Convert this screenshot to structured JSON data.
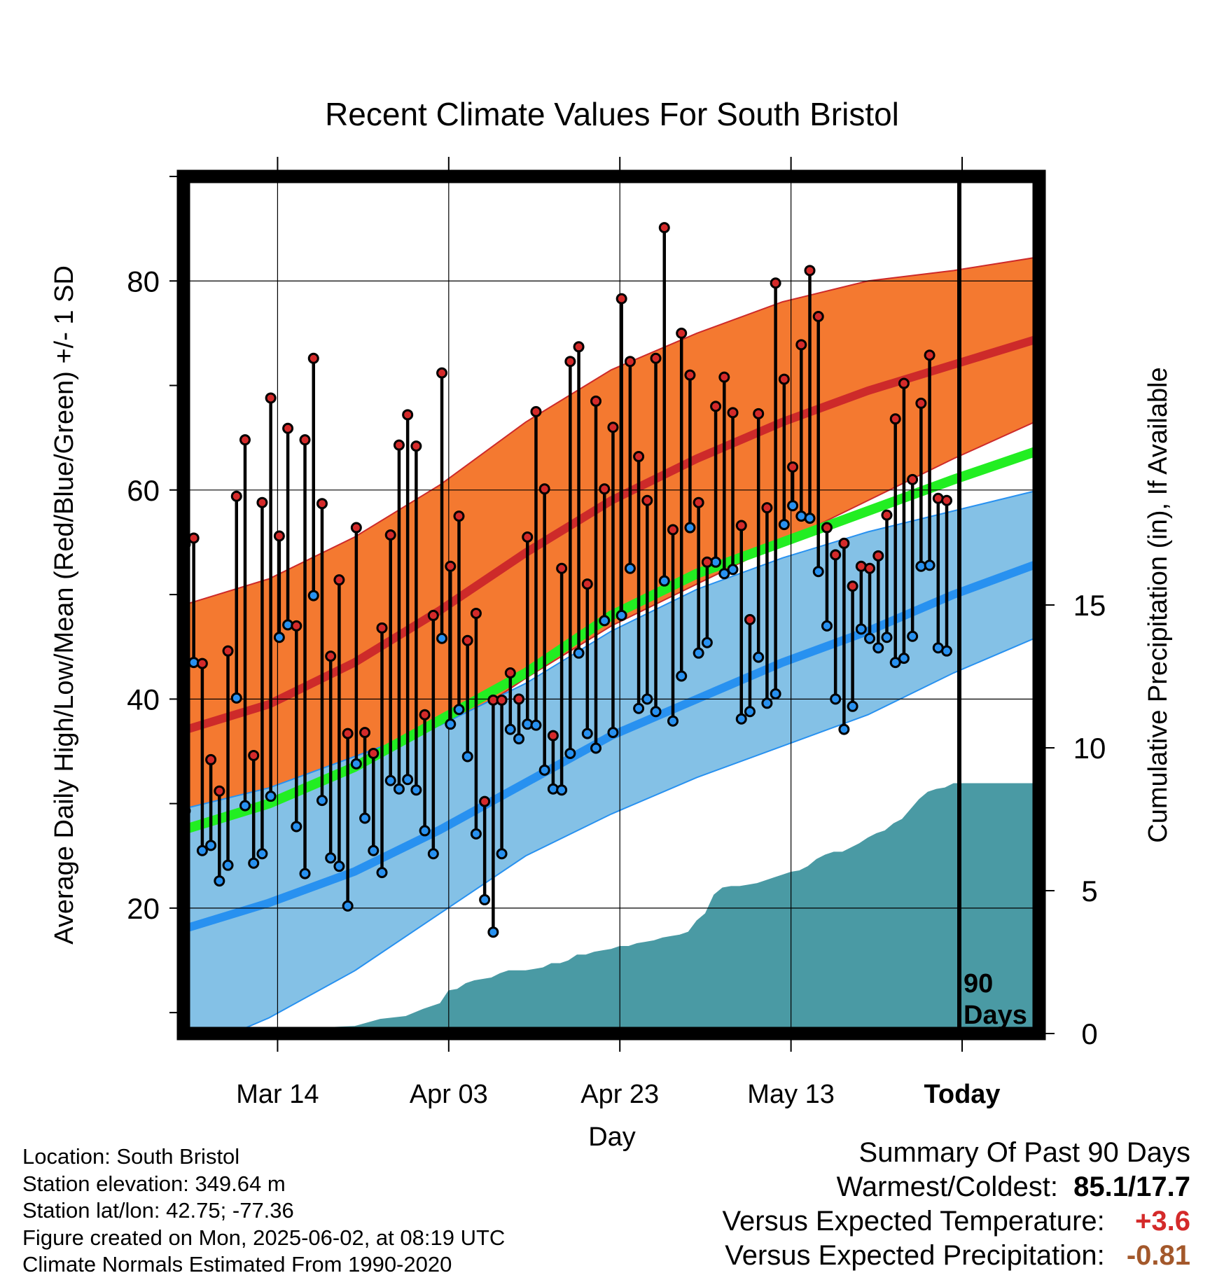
{
  "title": "Recent Climate Values For South Bristol",
  "ylabel_left": "Average Daily High/Low/Mean (Red/Blue/Green) +/- 1 SD",
  "ylabel_right": "Cumulative Precipitation (in), If Available",
  "xlabel": "Day",
  "today_box": {
    "line1": "90",
    "line2": "Days"
  },
  "footer": {
    "location": "Location: South Bristol",
    "elevation": "Station elevation: 349.64 m",
    "latlon": "Station lat/lon: 42.75; -77.36",
    "created": "Figure created on Mon, 2025-06-02, at 08:19 UTC",
    "normals": "Climate Normals Estimated From 1990-2020"
  },
  "summary": {
    "heading": "Summary Of Past 90 Days",
    "warm_cold_label": "Warmest/Coldest:",
    "warm_cold_value": "85.1/17.7",
    "temp_label": "Versus Expected Temperature:",
    "temp_value": "+3.6",
    "temp_color": "#d42a2a",
    "precip_label": "Versus Expected Precipitation:",
    "precip_value": "-0.81",
    "precip_color": "#a3582b"
  },
  "colors": {
    "high_band": "#f47930",
    "high_line": "#cd2a2a",
    "low_band": "#84c1e6",
    "low_line": "#2891f0",
    "mean_line": "#22ee22",
    "precip_fill": "#4a9aa4",
    "dot_high": "#d42a2a",
    "dot_low": "#2891f0"
  },
  "chart_data": {
    "type": "line",
    "x_ticks": [
      "Mar 14",
      "Apr 03",
      "Apr 23",
      "May 13",
      "Today"
    ],
    "x_tick_days": [
      11,
      31,
      51,
      71,
      91
    ],
    "x_range": [
      0,
      100
    ],
    "ylim": [
      8,
      90
    ],
    "y_ticks": [
      20,
      40,
      60,
      80
    ],
    "y2_lim": [
      0,
      30
    ],
    "y2_ticks": [
      0,
      5,
      10,
      15
    ],
    "grid": true,
    "normals": {
      "days": [
        0,
        10,
        20,
        30,
        40,
        50,
        60,
        70,
        80,
        90,
        100
      ],
      "high_mean": [
        37,
        39.5,
        43.5,
        48.5,
        54,
        59,
        63,
        66.5,
        69.5,
        72,
        74.5
      ],
      "high_upper": [
        49,
        51.5,
        55.5,
        60.5,
        66.5,
        71.5,
        75,
        78,
        80,
        81,
        82.3
      ],
      "high_lower": [
        25,
        27.5,
        31.5,
        36.5,
        42,
        47,
        51,
        55,
        59,
        63,
        66.7
      ],
      "low_mean": [
        18,
        20.5,
        23.5,
        27.5,
        32,
        36.5,
        40,
        43.5,
        46.5,
        50,
        53
      ],
      "low_upper": [
        29.5,
        31.5,
        34.5,
        37.5,
        41.5,
        46.5,
        50.5,
        53.5,
        56,
        58,
        60
      ],
      "low_lower": [
        6,
        9.5,
        14,
        19.5,
        25,
        29,
        32.5,
        35.5,
        38.5,
        42.5,
        46
      ],
      "mean": [
        27.5,
        30,
        33.5,
        38,
        42.5,
        48,
        52,
        55,
        58,
        61,
        63.8
      ]
    },
    "daily": {
      "high": [
        54.8,
        55.4,
        43.4,
        34.2,
        31.2,
        44.6,
        59.4,
        64.8,
        34.6,
        58.8,
        68.8,
        55.6,
        65.9,
        47,
        64.8,
        72.6,
        58.7,
        44.1,
        51.4,
        36.7,
        56.4,
        36.8,
        34.8,
        46.8,
        55.7,
        64.3,
        67.2,
        64.2,
        38.5,
        48,
        71.2,
        52.7,
        57.5,
        45.6,
        48.2,
        30.2,
        39.9,
        39.9,
        42.5,
        40,
        55.5,
        67.5,
        60.1,
        36.5,
        52.5,
        72.3,
        73.7,
        51,
        68.5,
        60.1,
        66,
        78.3,
        72.3,
        63.2,
        59,
        72.6,
        85.1,
        56.2,
        75,
        71,
        58.8,
        53.1,
        68,
        70.8,
        67.4,
        56.6,
        47.6,
        67.3,
        58.3,
        79.8,
        70.6,
        62.2,
        73.9,
        81,
        76.6,
        56.4,
        53.8,
        54.9,
        50.8,
        52.7,
        52.5,
        53.7,
        57.6,
        66.8,
        70.2,
        61,
        68.3,
        72.9,
        59.2,
        59
      ],
      "low": [
        29.3,
        43.5,
        25.5,
        26,
        22.6,
        24.1,
        40.1,
        29.8,
        24.3,
        25.2,
        30.7,
        45.9,
        47.1,
        27.8,
        23.3,
        49.9,
        30.3,
        24.8,
        24,
        20.2,
        33.8,
        28.6,
        25.5,
        23.4,
        32.2,
        31.4,
        32.3,
        31.3,
        27.4,
        25.2,
        45.8,
        37.6,
        39,
        34.5,
        27.1,
        20.8,
        17.7,
        25.2,
        37.1,
        36.2,
        37.6,
        37.5,
        33.2,
        31.4,
        31.3,
        34.8,
        44.4,
        36.7,
        35.3,
        47.5,
        36.8,
        48,
        52.5,
        39.1,
        40,
        38.8,
        51.3,
        37.9,
        42.2,
        56.4,
        44.4,
        45.4,
        53.1,
        52,
        52.4,
        38.1,
        38.8,
        44,
        39.6,
        40.5,
        56.7,
        58.5,
        57.5,
        57.3,
        52.2,
        47,
        40,
        37.1,
        39.3,
        46.7,
        45.8,
        44.9,
        45.9,
        43.5,
        43.9,
        46,
        52.7,
        52.8,
        44.9,
        44.6
      ]
    },
    "precip_cumulative": {
      "days": [
        0,
        10,
        15,
        16,
        20,
        23,
        26,
        28,
        29,
        30,
        31,
        32,
        33,
        34,
        35,
        36,
        37,
        38,
        39,
        40,
        41,
        42,
        43,
        44,
        45,
        46,
        47,
        48,
        49,
        50,
        51,
        52,
        53,
        54,
        55,
        56,
        57,
        58,
        59,
        60,
        61,
        62,
        63,
        64,
        65,
        66,
        67,
        68,
        69,
        70,
        71,
        72,
        73,
        74,
        75,
        76,
        77,
        78,
        79,
        80,
        81,
        82,
        83,
        84,
        85,
        86,
        87,
        88,
        89,
        90,
        91,
        100
      ],
      "values": [
        0,
        0,
        0.2,
        0.2,
        0.25,
        0.5,
        0.6,
        0.85,
        0.95,
        1.05,
        1.5,
        1.55,
        1.75,
        1.85,
        1.9,
        1.95,
        2.1,
        2.2,
        2.2,
        2.2,
        2.25,
        2.3,
        2.45,
        2.45,
        2.55,
        2.75,
        2.75,
        2.85,
        2.9,
        2.95,
        3.05,
        3.05,
        3.15,
        3.2,
        3.25,
        3.35,
        3.4,
        3.45,
        3.55,
        3.95,
        4.2,
        4.85,
        5.1,
        5.15,
        5.15,
        5.2,
        5.25,
        5.35,
        5.45,
        5.55,
        5.65,
        5.7,
        5.85,
        6.1,
        6.25,
        6.35,
        6.35,
        6.5,
        6.65,
        6.85,
        7.0,
        7.1,
        7.35,
        7.5,
        7.85,
        8.2,
        8.45,
        8.55,
        8.6,
        8.75,
        8.75,
        8.75
      ]
    }
  }
}
